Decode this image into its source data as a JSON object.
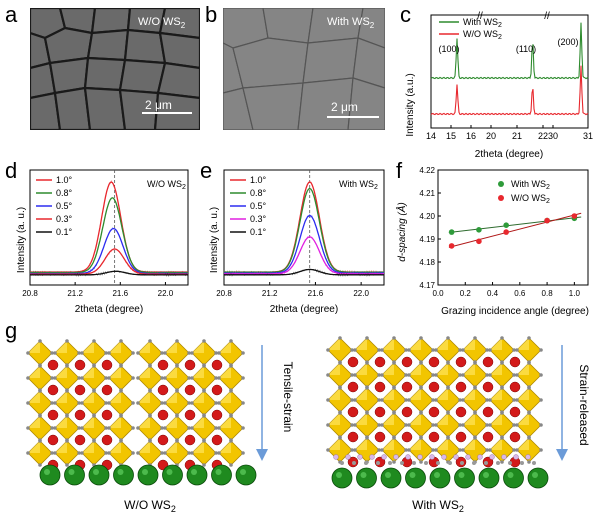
{
  "panels": {
    "a": {
      "label": "a",
      "caption": "W/O WS",
      "caption_sub": "2",
      "scale_bar": "2 μm"
    },
    "b": {
      "label": "b",
      "caption": "With WS",
      "caption_sub": "2",
      "scale_bar": "2 μm"
    },
    "c": {
      "label": "c"
    },
    "d": {
      "label": "d"
    },
    "e": {
      "label": "e"
    },
    "f": {
      "label": "f"
    },
    "g": {
      "label": "g",
      "left_caption": "W/O WS",
      "right_caption": "With WS",
      "sub": "2",
      "left_arrow_label": "Tensile-strain",
      "right_arrow_label": "Strain-released"
    }
  },
  "chart_data": [
    {
      "id": "c",
      "type": "line",
      "xlabel": "2theta (degree)",
      "ylabel": "Intensity (a.u.)",
      "x_ticks": [
        "14",
        "15",
        "16",
        "20",
        "21",
        "22",
        "30",
        "31"
      ],
      "axis_break": true,
      "series": [
        {
          "name": "With WS2",
          "color": "#2e8b2e",
          "peaks": [
            15.3,
            21.6,
            30.8
          ]
        },
        {
          "name": "W/O WS2",
          "color": "#e8282e",
          "peaks": [
            15.3,
            21.6,
            30.8
          ]
        }
      ],
      "annotations": [
        "(100)",
        "(110)",
        "(200)"
      ],
      "legend": [
        {
          "text": "With WS",
          "sub": "2",
          "color": "#2e8b2e"
        },
        {
          "text": "W/O WS",
          "sub": "2",
          "color": "#e8282e"
        }
      ]
    },
    {
      "id": "d",
      "type": "line",
      "title": "W/O WS",
      "title_sub": "2",
      "xlabel": "2theta (degree)",
      "ylabel": "Intensity (a. u.)",
      "xlim": [
        20.8,
        22.2
      ],
      "x_ticks": [
        "20.8",
        "21.2",
        "21.6",
        "22.0"
      ],
      "series": [
        {
          "name": "1.0°",
          "color": "#e8282e",
          "center": 21.52,
          "amp": 1.0
        },
        {
          "name": "0.8°",
          "color": "#2e8b2e",
          "center": 21.53,
          "amp": 0.83
        },
        {
          "name": "0.5°",
          "color": "#2c2cf0",
          "center": 21.54,
          "amp": 0.5
        },
        {
          "name": "0.3°",
          "color": "#e8282e",
          "center": 21.55,
          "amp": 0.28
        },
        {
          "name": "0.1°",
          "color": "#111111",
          "center": 21.56,
          "amp": 0.04
        }
      ]
    },
    {
      "id": "e",
      "type": "line",
      "title": "With WS",
      "title_sub": "2",
      "xlabel": "2theta (degree)",
      "ylabel": "Intensity (a. u.)",
      "xlim": [
        20.8,
        22.2
      ],
      "x_ticks": [
        "20.8",
        "21.2",
        "21.6",
        "22.0"
      ],
      "series": [
        {
          "name": "1.0°",
          "color": "#e8282e",
          "center": 21.55,
          "amp": 1.0
        },
        {
          "name": "0.8°",
          "color": "#2e8b2e",
          "center": 21.55,
          "amp": 0.93
        },
        {
          "name": "0.5°",
          "color": "#2c2cf0",
          "center": 21.55,
          "amp": 0.64
        },
        {
          "name": "0.3°",
          "color": "#e020e0",
          "center": 21.55,
          "amp": 0.41
        },
        {
          "name": "0.1°",
          "color": "#111111",
          "center": 21.55,
          "amp": 0.06
        }
      ]
    },
    {
      "id": "f",
      "type": "scatter",
      "xlabel": "Grazing incidence angle (degree)",
      "ylabel": "d-spacing (Å)",
      "xlim": [
        0.0,
        1.1
      ],
      "ylim": [
        4.17,
        4.22
      ],
      "x_ticks": [
        "0.0",
        "0.2",
        "0.4",
        "0.6",
        "0.8",
        "1.0"
      ],
      "y_ticks": [
        "4.17",
        "4.18",
        "4.19",
        "4.20",
        "4.21",
        "4.22"
      ],
      "series": [
        {
          "name": "With WS2",
          "color": "#2e9b3a",
          "x": [
            0.1,
            0.3,
            0.5,
            0.8,
            1.0
          ],
          "y": [
            4.193,
            4.194,
            4.196,
            4.198,
            4.199
          ]
        },
        {
          "name": "W/O WS2",
          "color": "#e8282e",
          "x": [
            0.1,
            0.3,
            0.5,
            0.8,
            1.0
          ],
          "y": [
            4.187,
            4.189,
            4.193,
            4.198,
            4.2
          ]
        }
      ],
      "legend": [
        {
          "text": "With WS",
          "sub": "2",
          "color": "#2e9b3a"
        },
        {
          "text": "W/O WS",
          "sub": "2",
          "color": "#e8282e"
        }
      ]
    }
  ]
}
